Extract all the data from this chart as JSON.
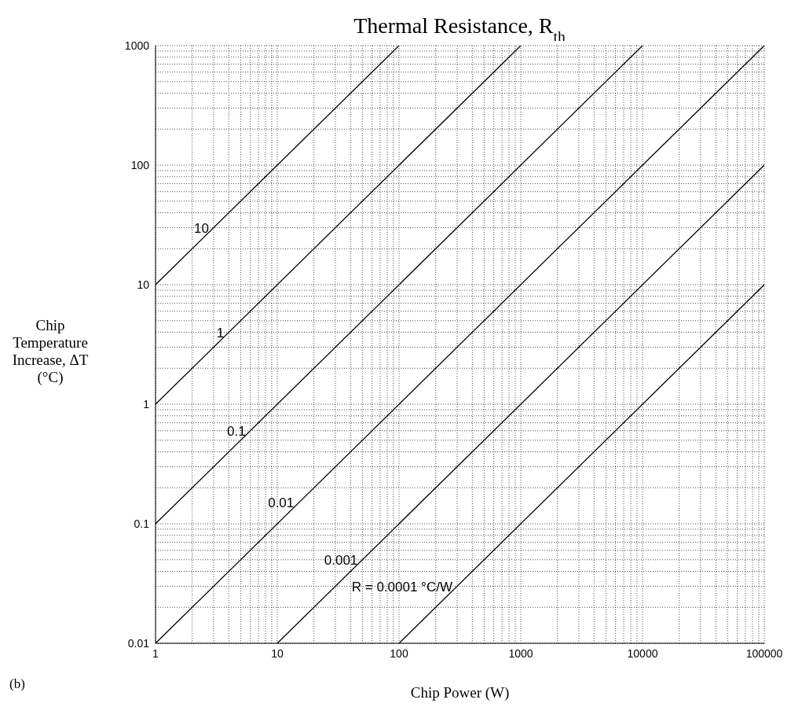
{
  "chart_data": {
    "type": "line",
    "title": "Thermal Resistance, R$_{th}$",
    "xlabel": "Chip Power (W)",
    "ylabel": "Chip Temperature Increase, ΔT (°C)",
    "log": "xy",
    "grid": true,
    "marker": "none",
    "line_style": "solid",
    "xlim": [
      1,
      100000
    ],
    "ylim": [
      0.01,
      1000
    ],
    "xticks": [
      1,
      {
        "value": 2,
        "label": null
      },
      {
        "value": 3,
        "label": null
      },
      {
        "value": 4,
        "label": null
      },
      {
        "value": 5,
        "label": null
      },
      {
        "value": 6,
        "label": null
      },
      {
        "value": 7,
        "label": null
      },
      {
        "value": 8,
        "label": null
      },
      {
        "value": 9,
        "label": null
      },
      10,
      {
        "value": 20,
        "label": null
      },
      {
        "value": 30,
        "label": null
      },
      {
        "value": 40,
        "label": null
      },
      {
        "value": 50,
        "label": null
      },
      {
        "value": 60,
        "label": null
      },
      {
        "value": 70,
        "label": null
      },
      {
        "value": 80,
        "label": null
      },
      {
        "value": 90,
        "label": null
      },
      100,
      {
        "value": 200,
        "label": null
      },
      {
        "value": 300,
        "label": null
      },
      {
        "value": 400,
        "label": null
      },
      {
        "value": 500,
        "label": null
      },
      {
        "value": 600,
        "label": null
      },
      {
        "value": 700,
        "label": null
      },
      {
        "value": 800,
        "label": null
      },
      {
        "value": 900,
        "label": null
      },
      1000,
      {
        "value": 2000,
        "label": null
      },
      {
        "value": 3000,
        "label": null
      },
      {
        "value": 4000,
        "label": null
      },
      {
        "value": 5000,
        "label": null
      },
      {
        "value": 6000,
        "label": null
      },
      {
        "value": 7000,
        "label": null
      },
      {
        "value": 8000,
        "label": null
      },
      {
        "value": 9000,
        "label": null
      },
      10000,
      {
        "value": 20000,
        "label": null
      },
      {
        "value": 30000,
        "label": null
      },
      {
        "value": 40000,
        "label": null
      },
      {
        "value": 50000,
        "label": null
      },
      {
        "value": 60000,
        "label": null
      },
      {
        "value": 70000,
        "label": null
      },
      {
        "value": 80000,
        "label": null
      },
      {
        "value": 90000,
        "label": null
      },
      100000
    ],
    "yticks": [
      0.01,
      {
        "value": 0.02,
        "label": null
      },
      {
        "value": 0.03,
        "label": null
      },
      {
        "value": 0.04,
        "label": null
      },
      {
        "value": 0.05,
        "label": null
      },
      {
        "value": 0.06,
        "label": null
      },
      {
        "value": 0.07,
        "label": null
      },
      {
        "value": 0.08,
        "label": null
      },
      {
        "value": 0.09,
        "label": null
      },
      0.1,
      {
        "value": 0.2,
        "label": null
      },
      {
        "value": 0.3,
        "label": null
      },
      {
        "value": 0.4,
        "label": null
      },
      {
        "value": 0.5,
        "label": null
      },
      {
        "value": 0.6,
        "label": null
      },
      {
        "value": 0.7,
        "label": null
      },
      {
        "value": 0.8,
        "label": null
      },
      {
        "value": 0.9,
        "label": null
      },
      1,
      {
        "value": 2,
        "label": null
      },
      {
        "value": 3,
        "label": null
      },
      {
        "value": 4,
        "label": null
      },
      {
        "value": 5,
        "label": null
      },
      {
        "value": 6,
        "label": null
      },
      {
        "value": 7,
        "label": null
      },
      {
        "value": 8,
        "label": null
      },
      {
        "value": 9,
        "label": null
      },
      10,
      {
        "value": 20,
        "label": null
      },
      {
        "value": 30,
        "label": null
      },
      {
        "value": 40,
        "label": null
      },
      {
        "value": 50,
        "label": null
      },
      {
        "value": 60,
        "label": null
      },
      {
        "value": 70,
        "label": null
      },
      {
        "value": 80,
        "label": null
      },
      {
        "value": 90,
        "label": null
      },
      100,
      {
        "value": 200,
        "label": null
      },
      {
        "value": 300,
        "label": null
      },
      {
        "value": 400,
        "label": null
      },
      {
        "value": 500,
        "label": null
      },
      {
        "value": 600,
        "label": null
      },
      {
        "value": 700,
        "label": null
      },
      {
        "value": 800,
        "label": null
      },
      {
        "value": 900,
        "label": null
      },
      1000
    ],
    "series": [
      {
        "color": "#000000",
        "x": [
          1,
          100
        ],
        "values": [
          10,
          1000
        ]
      },
      {
        "color": "#000000",
        "x": [
          1,
          1000
        ],
        "values": [
          1,
          1000
        ]
      },
      {
        "color": "#000000",
        "x": [
          1,
          10000
        ],
        "values": [
          0.1,
          1000
        ]
      },
      {
        "color": "#000000",
        "x": [
          1,
          100000
        ],
        "values": [
          0.01,
          1000
        ]
      },
      {
        "color": "#000000",
        "x": [
          10,
          100000
        ],
        "values": [
          0.01,
          100
        ]
      },
      {
        "color": "#000000",
        "x": [
          100,
          100000
        ],
        "values": [
          0.01,
          10
        ]
      }
    ],
    "annotations": [
      {
        "text": "10",
        "x": 3,
        "y": 30
      },
      {
        "text": "1",
        "x": 4,
        "y": 4
      },
      {
        "text": "0.1",
        "x": 6,
        "y": 0.6
      },
      {
        "text": "0.01",
        "x": 15,
        "y": 0.15
      },
      {
        "text": "0.001",
        "x": 50,
        "y": 0.05
      },
      {
        "text": "R = 0.0001 °C/W",
        "x": 300,
        "y": 0.03
      },
      "(b)"
    ]
  }
}
